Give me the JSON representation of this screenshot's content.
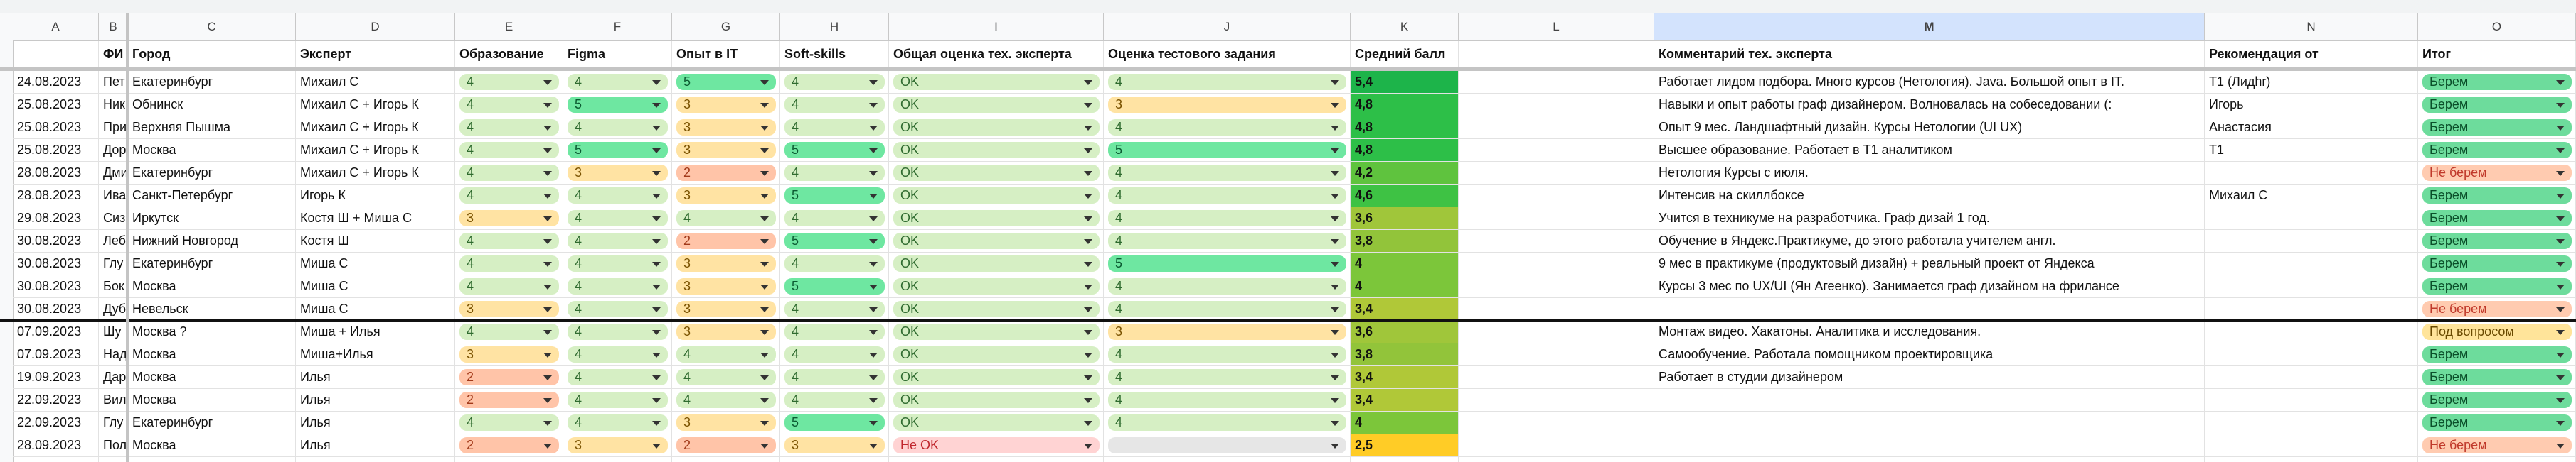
{
  "column_letters": [
    "A",
    "B",
    "C",
    "D",
    "E",
    "F",
    "G",
    "H",
    "I",
    "J",
    "K",
    "L",
    "M",
    "N",
    "O"
  ],
  "header": [
    "",
    "ФИ",
    "Город",
    "Эксперт",
    "Образование",
    "Figma",
    "Опыт в IT",
    "Soft-skills",
    "Общая оценка тех. эксперта",
    "Оценка  тестового задания",
    "Средний балл",
    null,
    "Комментарий тех. эксперта",
    "Рекомендация от",
    "Итог"
  ],
  "rows": [
    {
      "date": "24.08.2023",
      "name": "Пет",
      "city": "Екатеринбург",
      "expert": "Михаил С",
      "education": {
        "text": "4",
        "bg": "#d6efc4",
        "fg": "#2f6b2f"
      },
      "figma": {
        "text": "4",
        "bg": "#d6efc4",
        "fg": "#2f6b2f"
      },
      "it": {
        "text": "5",
        "bg": "#6ee7a1",
        "fg": "#0b5b32"
      },
      "soft": {
        "text": "4",
        "bg": "#d6efc4",
        "fg": "#2f6b2f"
      },
      "overall": {
        "text": "OK",
        "bg": "#d6efc4",
        "fg": "#2f6b2f"
      },
      "test": {
        "text": "4",
        "bg": "#d6efc4",
        "fg": "#2f6b2f"
      },
      "score": {
        "text": "5,4",
        "bg": "#1db44a"
      },
      "comment": "Работает лидом подбора. Много курсов (Нетология). Java. Большой опыт  в IT.",
      "recommended": "Т1 (Лидhr)",
      "result": {
        "text": "Берем",
        "bg": "#6ddc9c",
        "fg": "#0b4f2a"
      }
    },
    {
      "date": "25.08.2023",
      "name": "Ник",
      "city": "Обнинск",
      "expert": "Михаил С + Игорь  К",
      "education": {
        "text": "4",
        "bg": "#d6efc4",
        "fg": "#2f6b2f"
      },
      "figma": {
        "text": "5",
        "bg": "#6ee7a1",
        "fg": "#0b5b32"
      },
      "it": {
        "text": "3",
        "bg": "#ffe3a3",
        "fg": "#7a5200"
      },
      "soft": {
        "text": "4",
        "bg": "#d6efc4",
        "fg": "#2f6b2f"
      },
      "overall": {
        "text": "OK",
        "bg": "#d6efc4",
        "fg": "#2f6b2f"
      },
      "test": {
        "text": "3",
        "bg": "#ffe3a3",
        "fg": "#7a5200"
      },
      "score": {
        "text": "4,8",
        "bg": "#2dbf48"
      },
      "comment": "Навыки и опыт работы граф дизайнером. Волновалась на собеседовании (:",
      "recommended": "Игорь",
      "result": {
        "text": "Берем",
        "bg": "#6ddc9c",
        "fg": "#0b4f2a"
      }
    },
    {
      "date": "25.08.2023",
      "name": "При",
      "city": "Верхняя Пышма",
      "expert": "Михаил С + Игорь  К",
      "education": {
        "text": "4",
        "bg": "#d6efc4",
        "fg": "#2f6b2f"
      },
      "figma": {
        "text": "4",
        "bg": "#d6efc4",
        "fg": "#2f6b2f"
      },
      "it": {
        "text": "3",
        "bg": "#ffe3a3",
        "fg": "#7a5200"
      },
      "soft": {
        "text": "4",
        "bg": "#d6efc4",
        "fg": "#2f6b2f"
      },
      "overall": {
        "text": "OK",
        "bg": "#d6efc4",
        "fg": "#2f6b2f"
      },
      "test": {
        "text": "4",
        "bg": "#d6efc4",
        "fg": "#2f6b2f"
      },
      "score": {
        "text": "4,8",
        "bg": "#2dbf48"
      },
      "comment": "Опыт 9 мес. Ландшафтный дизайн. Курсы Нетологии (UI UX)",
      "recommended": "Анастасия",
      "result": {
        "text": "Берем",
        "bg": "#6ddc9c",
        "fg": "#0b4f2a"
      }
    },
    {
      "date": "25.08.2023",
      "name": "Дор",
      "city": "Москва",
      "expert": "Михаил С + Игорь  К",
      "education": {
        "text": "4",
        "bg": "#d6efc4",
        "fg": "#2f6b2f"
      },
      "figma": {
        "text": "5",
        "bg": "#6ee7a1",
        "fg": "#0b5b32"
      },
      "it": {
        "text": "3",
        "bg": "#ffe3a3",
        "fg": "#7a5200"
      },
      "soft": {
        "text": "5",
        "bg": "#6ee7a1",
        "fg": "#0b5b32"
      },
      "overall": {
        "text": "OK",
        "bg": "#d6efc4",
        "fg": "#2f6b2f"
      },
      "test": {
        "text": "5",
        "bg": "#6ee7a1",
        "fg": "#0b5b32"
      },
      "score": {
        "text": "4,8",
        "bg": "#2dbf48"
      },
      "comment": "Высшее образование. Работает в Т1 аналитиком",
      "recommended": "Т1",
      "result": {
        "text": "Берем",
        "bg": "#6ddc9c",
        "fg": "#0b4f2a"
      }
    },
    {
      "date": "28.08.2023",
      "name": "Дми",
      "city": "Екатеринбург",
      "expert": "Михаил С + Игорь  К",
      "education": {
        "text": "4",
        "bg": "#d6efc4",
        "fg": "#2f6b2f"
      },
      "figma": {
        "text": "3",
        "bg": "#ffe3a3",
        "fg": "#7a5200"
      },
      "it": {
        "text": "2",
        "bg": "#ffc4a8",
        "fg": "#a23a1a"
      },
      "soft": {
        "text": "4",
        "bg": "#d6efc4",
        "fg": "#2f6b2f"
      },
      "overall": {
        "text": "OK",
        "bg": "#d6efc4",
        "fg": "#2f6b2f"
      },
      "test": {
        "text": "4",
        "bg": "#d6efc4",
        "fg": "#2f6b2f"
      },
      "score": {
        "text": "4,2",
        "bg": "#5fc33e"
      },
      "comment": "Нетология Курсы с июля.",
      "result": {
        "text": "Не берем",
        "bg": "#ffcbb0",
        "fg": "#c0392b"
      }
    },
    {
      "date": "28.08.2023",
      "name": "Ива",
      "city": "Санкт-Петербург",
      "expert": "Игорь К",
      "education": {
        "text": "4",
        "bg": "#d6efc4",
        "fg": "#2f6b2f"
      },
      "figma": {
        "text": "4",
        "bg": "#d6efc4",
        "fg": "#2f6b2f"
      },
      "it": {
        "text": "3",
        "bg": "#ffe3a3",
        "fg": "#7a5200"
      },
      "soft": {
        "text": "5",
        "bg": "#6ee7a1",
        "fg": "#0b5b32"
      },
      "overall": {
        "text": "OK",
        "bg": "#d6efc4",
        "fg": "#2f6b2f"
      },
      "test": {
        "text": "4",
        "bg": "#d6efc4",
        "fg": "#2f6b2f"
      },
      "score": {
        "text": "4,6",
        "bg": "#3ec244"
      },
      "comment": "Интенсив на скиллбоксе",
      "recommended": "Михаил С",
      "result": {
        "text": "Берем",
        "bg": "#6ddc9c",
        "fg": "#0b4f2a"
      }
    },
    {
      "date": "29.08.2023",
      "name": "Сиз",
      "city": "Иркутск",
      "expert": "Костя Ш + Миша С",
      "education": {
        "text": "3",
        "bg": "#ffe3a3",
        "fg": "#7a5200"
      },
      "figma": {
        "text": "4",
        "bg": "#d6efc4",
        "fg": "#2f6b2f"
      },
      "it": {
        "text": "4",
        "bg": "#d6efc4",
        "fg": "#2f6b2f"
      },
      "soft": {
        "text": "4",
        "bg": "#d6efc4",
        "fg": "#2f6b2f"
      },
      "overall": {
        "text": "OK",
        "bg": "#d6efc4",
        "fg": "#2f6b2f"
      },
      "test": {
        "text": "4",
        "bg": "#d6efc4",
        "fg": "#2f6b2f"
      },
      "score": {
        "text": "3,6",
        "bg": "#a0c63a"
      },
      "comment": "Учится в техникуме на разработчика. Граф дизай 1 год.",
      "result": {
        "text": "Берем",
        "bg": "#6ddc9c",
        "fg": "#0b4f2a"
      }
    },
    {
      "date": "30.08.2023",
      "name": "Леб",
      "city": "Нижний Новгород",
      "expert": "Костя Ш",
      "education": {
        "text": "4",
        "bg": "#d6efc4",
        "fg": "#2f6b2f"
      },
      "figma": {
        "text": "4",
        "bg": "#d6efc4",
        "fg": "#2f6b2f"
      },
      "it": {
        "text": "2",
        "bg": "#ffc4a8",
        "fg": "#a23a1a"
      },
      "soft": {
        "text": "5",
        "bg": "#6ee7a1",
        "fg": "#0b5b32"
      },
      "overall": {
        "text": "OK",
        "bg": "#d6efc4",
        "fg": "#2f6b2f"
      },
      "test": {
        "text": "4",
        "bg": "#d6efc4",
        "fg": "#2f6b2f"
      },
      "score": {
        "text": "3,8",
        "bg": "#92c43a"
      },
      "comment": "Обучение в Яндекс.Практикуме, до этого работала учителем англ.",
      "result": {
        "text": "Берем",
        "bg": "#6ddc9c",
        "fg": "#0b4f2a"
      }
    },
    {
      "date": "30.08.2023",
      "name": "Глу",
      "city": "Екатеринбург",
      "expert": "Миша С",
      "education": {
        "text": "4",
        "bg": "#d6efc4",
        "fg": "#2f6b2f"
      },
      "figma": {
        "text": "4",
        "bg": "#d6efc4",
        "fg": "#2f6b2f"
      },
      "it": {
        "text": "3",
        "bg": "#ffe3a3",
        "fg": "#7a5200"
      },
      "soft": {
        "text": "4",
        "bg": "#d6efc4",
        "fg": "#2f6b2f"
      },
      "overall": {
        "text": "OK",
        "bg": "#d6efc4",
        "fg": "#2f6b2f"
      },
      "test": {
        "text": "5",
        "bg": "#6ee7a1",
        "fg": "#0b5b32"
      },
      "score": {
        "text": "4",
        "bg": "#7cc63a"
      },
      "comment": "9 мес в практикуме (продуктовый дизайн) + реальный проект от Яндекса",
      "result": {
        "text": "Берем",
        "bg": "#6ddc9c",
        "fg": "#0b4f2a"
      }
    },
    {
      "date": "30.08.2023",
      "name": "Бок",
      "city": "Москва",
      "expert": "Миша С",
      "education": {
        "text": "4",
        "bg": "#d6efc4",
        "fg": "#2f6b2f"
      },
      "figma": {
        "text": "4",
        "bg": "#d6efc4",
        "fg": "#2f6b2f"
      },
      "it": {
        "text": "3",
        "bg": "#ffe3a3",
        "fg": "#7a5200"
      },
      "soft": {
        "text": "5",
        "bg": "#6ee7a1",
        "fg": "#0b5b32"
      },
      "overall": {
        "text": "OK",
        "bg": "#d6efc4",
        "fg": "#2f6b2f"
      },
      "test": {
        "text": "4",
        "bg": "#d6efc4",
        "fg": "#2f6b2f"
      },
      "score": {
        "text": "4",
        "bg": "#7cc63a"
      },
      "comment": "Курсы 3 мес по UX/UI (Ян Агеенко). Занимается граф дизайном на фрилансе",
      "result": {
        "text": "Берем",
        "bg": "#6ddc9c",
        "fg": "#0b4f2a"
      }
    },
    {
      "date": "30.08.2023",
      "name": "Дуб",
      "city": "Невельск",
      "expert": "Миша С",
      "education": {
        "text": "3",
        "bg": "#ffe3a3",
        "fg": "#7a5200"
      },
      "figma": {
        "text": "4",
        "bg": "#d6efc4",
        "fg": "#2f6b2f"
      },
      "it": {
        "text": "3",
        "bg": "#ffe3a3",
        "fg": "#7a5200"
      },
      "soft": {
        "text": "4",
        "bg": "#d6efc4",
        "fg": "#2f6b2f"
      },
      "overall": {
        "text": "OK",
        "bg": "#d6efc4",
        "fg": "#2f6b2f"
      },
      "test": {
        "text": "4",
        "bg": "#d6efc4",
        "fg": "#2f6b2f"
      },
      "score": {
        "text": "3,4",
        "bg": "#b0c838"
      },
      "result": {
        "text": "Не берем",
        "bg": "#ffcbb0",
        "fg": "#c0392b"
      }
    },
    {
      "date": "07.09.2023",
      "name": "Шу",
      "city": "Москва ?",
      "expert": "Миша + Илья",
      "education": {
        "text": "4",
        "bg": "#d6efc4",
        "fg": "#2f6b2f"
      },
      "figma": {
        "text": "4",
        "bg": "#d6efc4",
        "fg": "#2f6b2f"
      },
      "it": {
        "text": "3",
        "bg": "#ffe3a3",
        "fg": "#7a5200"
      },
      "soft": {
        "text": "4",
        "bg": "#d6efc4",
        "fg": "#2f6b2f"
      },
      "overall": {
        "text": "OK",
        "bg": "#d6efc4",
        "fg": "#2f6b2f"
      },
      "test": {
        "text": "3",
        "bg": "#ffe3a3",
        "fg": "#7a5200"
      },
      "score": {
        "text": "3,6",
        "bg": "#a0c63a"
      },
      "comment": "Монтаж видео. Хакатоны. Аналитика и исследования.",
      "result": {
        "text": "Под вопросом",
        "bg": "#ffe49a",
        "fg": "#6a4a00"
      }
    },
    {
      "date": "07.09.2023",
      "name": "Над",
      "city": "Москва",
      "expert": "Миша+Илья",
      "education": {
        "text": "3",
        "bg": "#ffe3a3",
        "fg": "#7a5200"
      },
      "figma": {
        "text": "4",
        "bg": "#d6efc4",
        "fg": "#2f6b2f"
      },
      "it": {
        "text": "4",
        "bg": "#d6efc4",
        "fg": "#2f6b2f"
      },
      "soft": {
        "text": "4",
        "bg": "#d6efc4",
        "fg": "#2f6b2f"
      },
      "overall": {
        "text": "OK",
        "bg": "#d6efc4",
        "fg": "#2f6b2f"
      },
      "test": {
        "text": "4",
        "bg": "#d6efc4",
        "fg": "#2f6b2f"
      },
      "score": {
        "text": "3,8",
        "bg": "#92c43a"
      },
      "comment": "Самообучение. Работала помощником проектировщика",
      "result": {
        "text": "Берем",
        "bg": "#6ddc9c",
        "fg": "#0b4f2a"
      }
    },
    {
      "date": "19.09.2023",
      "name": "Дар",
      "city": "Москва",
      "expert": "Илья",
      "education": {
        "text": "2",
        "bg": "#ffc4a8",
        "fg": "#a23a1a"
      },
      "figma": {
        "text": "4",
        "bg": "#d6efc4",
        "fg": "#2f6b2f"
      },
      "it": {
        "text": "4",
        "bg": "#d6efc4",
        "fg": "#2f6b2f"
      },
      "soft": {
        "text": "4",
        "bg": "#d6efc4",
        "fg": "#2f6b2f"
      },
      "overall": {
        "text": "OK",
        "bg": "#d6efc4",
        "fg": "#2f6b2f"
      },
      "test": {
        "text": "4",
        "bg": "#d6efc4",
        "fg": "#2f6b2f"
      },
      "score": {
        "text": "3,4",
        "bg": "#b0c838"
      },
      "comment": "Работает в студии дизайнером",
      "result": {
        "text": "Берем",
        "bg": "#6ddc9c",
        "fg": "#0b4f2a"
      }
    },
    {
      "date": "22.09.2023",
      "name": "Вил",
      "city": "Москва",
      "expert": "Илья",
      "education": {
        "text": "2",
        "bg": "#ffc4a8",
        "fg": "#a23a1a"
      },
      "figma": {
        "text": "4",
        "bg": "#d6efc4",
        "fg": "#2f6b2f"
      },
      "it": {
        "text": "4",
        "bg": "#d6efc4",
        "fg": "#2f6b2f"
      },
      "soft": {
        "text": "4",
        "bg": "#d6efc4",
        "fg": "#2f6b2f"
      },
      "overall": {
        "text": "OK",
        "bg": "#d6efc4",
        "fg": "#2f6b2f"
      },
      "test": {
        "text": "4",
        "bg": "#d6efc4",
        "fg": "#2f6b2f"
      },
      "score": {
        "text": "3,4",
        "bg": "#b0c838"
      },
      "result": {
        "text": "Берем",
        "bg": "#6ddc9c",
        "fg": "#0b4f2a"
      }
    },
    {
      "date": "22.09.2023",
      "name": "Глу",
      "city": "Екатеринбург",
      "expert": "Илья",
      "education": {
        "text": "4",
        "bg": "#d6efc4",
        "fg": "#2f6b2f"
      },
      "figma": {
        "text": "4",
        "bg": "#d6efc4",
        "fg": "#2f6b2f"
      },
      "it": {
        "text": "3",
        "bg": "#ffe3a3",
        "fg": "#7a5200"
      },
      "soft": {
        "text": "5",
        "bg": "#6ee7a1",
        "fg": "#0b5b32"
      },
      "overall": {
        "text": "OK",
        "bg": "#d6efc4",
        "fg": "#2f6b2f"
      },
      "test": {
        "text": "4",
        "bg": "#d6efc4",
        "fg": "#2f6b2f"
      },
      "score": {
        "text": "4",
        "bg": "#7cc63a"
      },
      "result": {
        "text": "Берем",
        "bg": "#6ddc9c",
        "fg": "#0b4f2a"
      }
    },
    {
      "date": "28.09.2023",
      "name": "Пол",
      "city": "Москва",
      "expert": "Илья",
      "education": {
        "text": "2",
        "bg": "#ffc4a8",
        "fg": "#a23a1a"
      },
      "figma": {
        "text": "3",
        "bg": "#ffe3a3",
        "fg": "#7a5200"
      },
      "it": {
        "text": "2",
        "bg": "#ffc4a8",
        "fg": "#a23a1a"
      },
      "soft": {
        "text": "3",
        "bg": "#ffe3a3",
        "fg": "#7a5200"
      },
      "overall": {
        "text": "Не OK",
        "bg": "#ffd3d3",
        "fg": "#c0262d"
      },
      "test": {
        "bg": "#e6e6e6",
        "fg": "#444444"
      },
      "score": {
        "text": "2,5",
        "bg": "#ffcc26"
      },
      "result": {
        "text": "Не берем",
        "bg": "#ffcbb0",
        "fg": "#c0392b"
      }
    }
  ]
}
